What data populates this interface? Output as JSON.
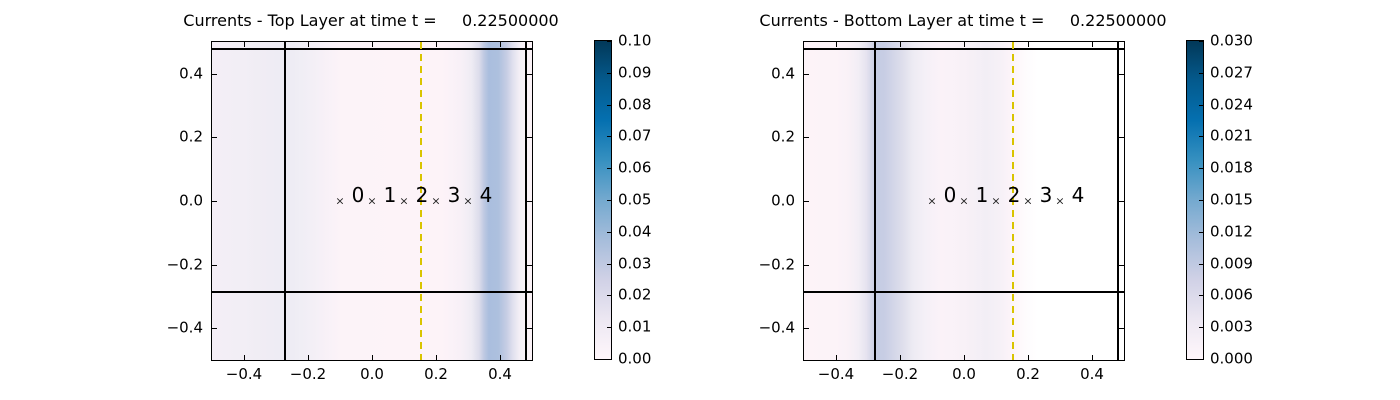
{
  "figure": {
    "background": "#ffffff"
  },
  "chart_data": [
    {
      "type": "heatmap",
      "title": "Currents - Top Layer at time t =     0.22500000",
      "xlim": [
        -0.5,
        0.5
      ],
      "ylim": [
        -0.5,
        0.5
      ],
      "grid": false,
      "xtick_values": [
        -0.4,
        -0.2,
        0.0,
        0.2,
        0.4
      ],
      "xtick_labels": [
        "−0.4",
        "−0.2",
        "0.0",
        "0.2",
        "0.4"
      ],
      "ytick_values": [
        0.4,
        0.2,
        0.0,
        -0.2,
        -0.4
      ],
      "ytick_labels": [
        "0.4",
        "0.2",
        "0.0",
        "−0.2",
        "−0.4"
      ],
      "colorbar": {
        "min": 0.0,
        "max": 0.1,
        "tick_labels": [
          "0.00",
          "0.01",
          "0.02",
          "0.03",
          "0.04",
          "0.05",
          "0.06",
          "0.07",
          "0.08",
          "0.09",
          "0.10"
        ],
        "colormap": "PuBu",
        "gradient_bottom_to_top": [
          "#fff7fb",
          "#ece7f2",
          "#d0d1e6",
          "#a6bddb",
          "#74a9cf",
          "#3690c0",
          "#0570b0",
          "#045a8d",
          "#023858"
        ]
      },
      "lines": [
        {
          "orientation": "vertical",
          "position": -0.272,
          "style": "solid",
          "color": "#000000",
          "width": 2
        },
        {
          "orientation": "vertical",
          "position": 0.481,
          "style": "solid",
          "color": "#000000",
          "width": 2
        },
        {
          "orientation": "horizontal",
          "position": -0.286,
          "style": "solid",
          "color": "#000000",
          "width": 2
        },
        {
          "orientation": "horizontal",
          "position": 0.478,
          "style": "solid",
          "color": "#000000",
          "width": 2
        },
        {
          "orientation": "vertical",
          "position": 0.153,
          "style": "dashed",
          "color": "#d9c400",
          "width": 2
        }
      ],
      "markers": [
        {
          "x": -0.1,
          "y": 0.0,
          "symbol": "×",
          "label": "0"
        },
        {
          "x": 0.0,
          "y": 0.0,
          "symbol": "×",
          "label": "1"
        },
        {
          "x": 0.1,
          "y": 0.0,
          "symbol": "×",
          "label": "2"
        },
        {
          "x": 0.2,
          "y": 0.0,
          "symbol": "×",
          "label": "3"
        },
        {
          "x": 0.3,
          "y": 0.0,
          "symbol": "×",
          "label": "4"
        }
      ],
      "field_profile": {
        "note": "current speed, uniform in y; estimated from colorbar",
        "x": [
          -0.5,
          -0.4,
          -0.3,
          -0.27,
          -0.2,
          -0.1,
          0.0,
          0.1,
          0.2,
          0.25,
          0.3,
          0.34,
          0.37,
          0.4,
          0.43,
          0.46,
          0.5
        ],
        "value": [
          0.005,
          0.006,
          0.008,
          0.009,
          0.007,
          0.003,
          0.001,
          0.001,
          0.001,
          0.002,
          0.006,
          0.02,
          0.038,
          0.035,
          0.015,
          0.004,
          0.002
        ]
      },
      "band_stops": [
        [
          0,
          "#f4eef6"
        ],
        [
          9,
          "#f2eef5"
        ],
        [
          18,
          "#efecf4"
        ],
        [
          22,
          "#eeecf4"
        ],
        [
          25,
          "#eeecf4"
        ],
        [
          28,
          "#f0eef5"
        ],
        [
          34,
          "#f6f0f7"
        ],
        [
          40,
          "#fcf3f8"
        ],
        [
          60,
          "#fdf3f8"
        ],
        [
          72,
          "#fdf3f8"
        ],
        [
          78,
          "#f7f0f7"
        ],
        [
          81,
          "#efecf4"
        ],
        [
          83.5,
          "#dcdceb"
        ],
        [
          85,
          "#bfc9e2"
        ],
        [
          86.5,
          "#aabede"
        ],
        [
          89.5,
          "#adc0de"
        ],
        [
          92,
          "#c6cde4"
        ],
        [
          94,
          "#e0e0ee"
        ],
        [
          96,
          "#f3eff6"
        ],
        [
          98,
          "#fbf3f8"
        ],
        [
          100,
          "#fcf3f8"
        ]
      ]
    },
    {
      "type": "heatmap",
      "title": "Currents - Bottom Layer at time t =     0.22500000",
      "xlim": [
        -0.5,
        0.5
      ],
      "ylim": [
        -0.5,
        0.5
      ],
      "grid": false,
      "xtick_values": [
        -0.4,
        -0.2,
        0.0,
        0.2,
        0.4
      ],
      "xtick_labels": [
        "−0.4",
        "−0.2",
        "0.0",
        "0.2",
        "0.4"
      ],
      "ytick_values": [
        0.4,
        0.2,
        0.0,
        -0.2,
        -0.4
      ],
      "ytick_labels": [
        "0.4",
        "0.2",
        "0.0",
        "−0.2",
        "−0.4"
      ],
      "colorbar": {
        "min": 0.0,
        "max": 0.03,
        "tick_labels": [
          "0.000",
          "0.003",
          "0.006",
          "0.009",
          "0.012",
          "0.015",
          "0.018",
          "0.021",
          "0.024",
          "0.027",
          "0.030"
        ],
        "colormap": "PuBu",
        "gradient_bottom_to_top": [
          "#fff7fb",
          "#ece7f2",
          "#d0d1e6",
          "#a6bddb",
          "#74a9cf",
          "#3690c0",
          "#0570b0",
          "#045a8d",
          "#023858"
        ]
      },
      "lines": [
        {
          "orientation": "vertical",
          "position": -0.278,
          "style": "solid",
          "color": "#000000",
          "width": 2
        },
        {
          "orientation": "vertical",
          "position": 0.481,
          "style": "solid",
          "color": "#000000",
          "width": 2
        },
        {
          "orientation": "horizontal",
          "position": -0.286,
          "style": "solid",
          "color": "#000000",
          "width": 2
        },
        {
          "orientation": "horizontal",
          "position": 0.478,
          "style": "solid",
          "color": "#000000",
          "width": 2
        },
        {
          "orientation": "vertical",
          "position": 0.153,
          "style": "dashed",
          "color": "#d9c400",
          "width": 2
        }
      ],
      "markers": [
        {
          "x": -0.1,
          "y": 0.0,
          "symbol": "×",
          "label": "0"
        },
        {
          "x": 0.0,
          "y": 0.0,
          "symbol": "×",
          "label": "1"
        },
        {
          "x": 0.1,
          "y": 0.0,
          "symbol": "×",
          "label": "2"
        },
        {
          "x": 0.2,
          "y": 0.0,
          "symbol": "×",
          "label": "3"
        },
        {
          "x": 0.3,
          "y": 0.0,
          "symbol": "×",
          "label": "4"
        }
      ],
      "field_profile": {
        "note": "current speed, uniform in y; estimated from colorbar",
        "x": [
          -0.5,
          -0.4,
          -0.35,
          -0.32,
          -0.3,
          -0.28,
          -0.25,
          -0.22,
          -0.18,
          -0.12,
          -0.05,
          0.0,
          0.05,
          0.1,
          0.15,
          0.2,
          0.3,
          0.5
        ],
        "value": [
          0.001,
          0.0012,
          0.002,
          0.004,
          0.007,
          0.009,
          0.0082,
          0.0065,
          0.0045,
          0.0025,
          0.0015,
          0.0012,
          0.0018,
          0.0012,
          0.0008,
          0.0002,
          0.0,
          0.0
        ]
      },
      "band_stops": [
        [
          0,
          "#fdf3f8"
        ],
        [
          10,
          "#fcf3f8"
        ],
        [
          14,
          "#f9f1f7"
        ],
        [
          17,
          "#f2eef5"
        ],
        [
          19.5,
          "#e6e3f0"
        ],
        [
          21,
          "#d6d8e9"
        ],
        [
          22.5,
          "#c6cde4"
        ],
        [
          25,
          "#c7cde4"
        ],
        [
          28,
          "#d3d6e8"
        ],
        [
          31,
          "#dfdfec"
        ],
        [
          34,
          "#edebf3"
        ],
        [
          38,
          "#f5f0f7"
        ],
        [
          43,
          "#fbf2f8"
        ],
        [
          50,
          "#f8f1f7"
        ],
        [
          57,
          "#f2eef5"
        ],
        [
          62,
          "#f7f1f7"
        ],
        [
          65,
          "#fdf4f9"
        ],
        [
          69,
          "#fefbfd"
        ],
        [
          73,
          "#ffffff"
        ],
        [
          100,
          "#ffffff"
        ]
      ]
    }
  ]
}
